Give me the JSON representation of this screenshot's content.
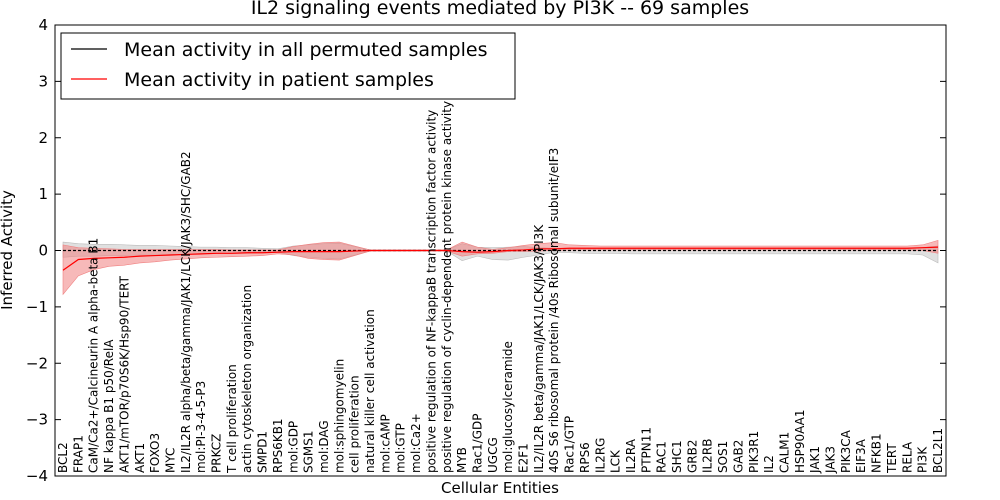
{
  "chart_data": {
    "type": "line",
    "title": "IL2 signaling events mediated by PI3K -- 69 samples",
    "xlabel": "Cellular Entities",
    "ylabel": "Inferred Activity",
    "ylim": [
      -4,
      4
    ],
    "yticks": [
      -4,
      -3,
      -2,
      -1,
      0,
      1,
      2,
      3,
      4
    ],
    "legend_position": "top-left",
    "colors": {
      "permuted": "#000000",
      "patient": "#ff0000",
      "patient_band": "#f08080",
      "permuted_band": "#bbbbbb"
    },
    "categories": [
      "BCL2",
      "FRAP1",
      "CaM/Ca2+/Calcineurin A alpha-beta B1",
      "NF kappa B1 p50/RelA",
      "AKT1/mTOR/p70S6K/Hsp90/TERT",
      "AKT1",
      "FOXO3",
      "MYC",
      "IL2/IL2R alpha/beta/gamma/JAK1/LCK/JAK3/SHC/GAB2",
      "mol:PI-3-4-5-P3",
      "PRKCZ",
      "T cell proliferation",
      "actin cytoskeleton organization",
      "SMPD1",
      "RPS6KB1",
      "mol:GDP",
      "SGMS1",
      "mol:DAG",
      "mol:sphingomyelin",
      "cell proliferation",
      "natural killer cell activation",
      "mol:cAMP",
      "mol:GTP",
      "mol:Ca2+",
      "positive regulation of NF-kappaB transcription factor activity",
      "positive regulation of cyclin-dependent protein kinase activity",
      "MYB",
      "Rac1/GDP",
      "UGCG",
      "mol:glucosylceramide",
      "E2F1",
      "IL2/IL2R beta/gamma/JAK1/LCK/JAK3/PI3K",
      "40S S6 ribosomal protein /40s Ribosomal subunit/eIF3",
      "Rac1/GTP",
      "RPS6",
      "IL2RG",
      "LCK",
      "IL2RA",
      "PTPN11",
      "RAC1",
      "SHC1",
      "GRB2",
      "IL2RB",
      "SOS1",
      "GAB2",
      "PIK3R1",
      "IL2",
      "CALM1",
      "HSP90AA1",
      "JAK1",
      "JAK3",
      "PIK3CA",
      "EIF3A",
      "NFKB1",
      "TERT",
      "RELA",
      "PI3K",
      "BCL2L1"
    ],
    "series": [
      {
        "name": "Mean activity in all permuted samples",
        "values": [
          0,
          0,
          0,
          0,
          0,
          0,
          0,
          0,
          0,
          0,
          0,
          0,
          0,
          0,
          0,
          0,
          0,
          0,
          0,
          0,
          0,
          0,
          0,
          0,
          0,
          0,
          0,
          0,
          0,
          0,
          0,
          0,
          0,
          0,
          0,
          0,
          0,
          0,
          0,
          0,
          0,
          0,
          0,
          0,
          0,
          0,
          0,
          0,
          0,
          0,
          0,
          0,
          0,
          0,
          0,
          0,
          0,
          0
        ],
        "lower": [
          -0.12,
          -0.1,
          -0.1,
          -0.09,
          -0.09,
          -0.08,
          -0.08,
          -0.07,
          -0.07,
          -0.06,
          -0.05,
          -0.05,
          -0.05,
          -0.04,
          -0.03,
          -0.09,
          -0.12,
          -0.14,
          -0.15,
          -0.08,
          -0.01,
          -0.01,
          -0.01,
          -0.01,
          -0.01,
          -0.01,
          -0.18,
          -0.1,
          -0.16,
          -0.17,
          -0.12,
          -0.08,
          -0.03,
          -0.04,
          -0.05,
          -0.05,
          -0.05,
          -0.06,
          -0.06,
          -0.06,
          -0.06,
          -0.06,
          -0.06,
          -0.06,
          -0.06,
          -0.06,
          -0.06,
          -0.06,
          -0.06,
          -0.06,
          -0.06,
          -0.06,
          -0.06,
          -0.06,
          -0.06,
          -0.06,
          -0.08,
          -0.22
        ],
        "upper": [
          0.15,
          0.12,
          0.11,
          0.11,
          0.1,
          0.09,
          0.09,
          0.08,
          0.07,
          0.06,
          0.06,
          0.05,
          0.05,
          0.04,
          0.03,
          0.08,
          0.1,
          0.12,
          0.13,
          0.07,
          0.01,
          0.01,
          0.01,
          0.01,
          0.01,
          0.01,
          0.12,
          0.06,
          0.05,
          0.06,
          0.07,
          0.05,
          0.04,
          0.04,
          0.04,
          0.04,
          0.04,
          0.04,
          0.04,
          0.04,
          0.04,
          0.04,
          0.04,
          0.04,
          0.04,
          0.04,
          0.04,
          0.04,
          0.04,
          0.04,
          0.04,
          0.04,
          0.04,
          0.04,
          0.04,
          0.04,
          0.05,
          0.08
        ]
      },
      {
        "name": "Mean activity in patient samples",
        "values": [
          -0.35,
          -0.16,
          -0.14,
          -0.13,
          -0.12,
          -0.1,
          -0.09,
          -0.08,
          -0.07,
          -0.06,
          -0.05,
          -0.05,
          -0.04,
          -0.04,
          -0.03,
          -0.02,
          -0.02,
          -0.02,
          -0.02,
          -0.01,
          0,
          0,
          0,
          0,
          0,
          0,
          -0.02,
          -0.03,
          -0.02,
          0,
          0.01,
          0.03,
          0.03,
          0.04,
          0.04,
          0.04,
          0.04,
          0.04,
          0.04,
          0.04,
          0.04,
          0.04,
          0.04,
          0.04,
          0.04,
          0.04,
          0.04,
          0.04,
          0.04,
          0.04,
          0.04,
          0.04,
          0.04,
          0.04,
          0.04,
          0.04,
          0.05,
          0.06
        ],
        "lower": [
          -0.78,
          -0.45,
          -0.34,
          -0.28,
          -0.26,
          -0.22,
          -0.2,
          -0.17,
          -0.15,
          -0.13,
          -0.12,
          -0.11,
          -0.1,
          -0.09,
          -0.06,
          -0.08,
          -0.14,
          -0.16,
          -0.17,
          -0.09,
          -0.01,
          -0.01,
          -0.01,
          -0.01,
          -0.01,
          -0.01,
          -0.1,
          -0.06,
          -0.05,
          -0.02,
          -0.02,
          -0.01,
          0,
          0.01,
          0.01,
          0.01,
          0.01,
          0.01,
          0.01,
          0.01,
          0.01,
          0.01,
          0.01,
          0.01,
          0.01,
          0.01,
          0.01,
          0.01,
          0.01,
          0.01,
          0.01,
          0.01,
          0.01,
          0.01,
          0.01,
          0.01,
          0.0,
          -0.05
        ],
        "upper": [
          0.1,
          0.05,
          0.04,
          0.03,
          0.02,
          0.02,
          0.02,
          0.02,
          0.02,
          0.02,
          0.02,
          0.01,
          0.01,
          0.01,
          0.01,
          0.07,
          0.11,
          0.14,
          0.15,
          0.08,
          0.01,
          0.01,
          0.01,
          0.01,
          0.01,
          0.01,
          0.15,
          0.06,
          0.02,
          0.05,
          0.09,
          0.12,
          0.14,
          0.1,
          0.09,
          0.08,
          0.08,
          0.08,
          0.08,
          0.08,
          0.08,
          0.08,
          0.08,
          0.08,
          0.08,
          0.08,
          0.08,
          0.08,
          0.08,
          0.08,
          0.08,
          0.08,
          0.08,
          0.08,
          0.08,
          0.08,
          0.1,
          0.18
        ]
      }
    ]
  }
}
